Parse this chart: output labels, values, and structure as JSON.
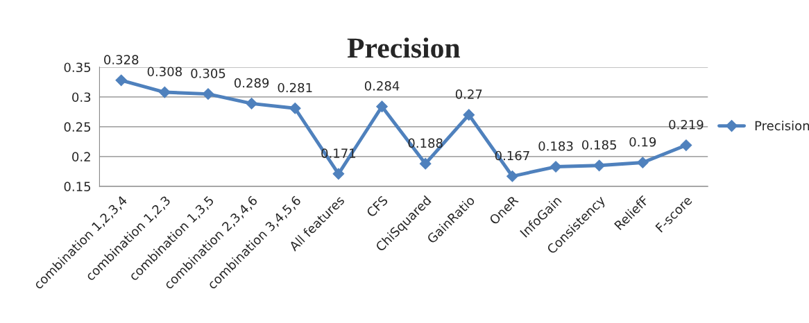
{
  "chart_data": {
    "type": "line",
    "title": "Precision",
    "categories": [
      "combination 1,2,3,4",
      "combination 1,2,3",
      "combination 1,3,5",
      "combination 2,3,4,6",
      "combination 3,4,5,6",
      "All features",
      "CFS",
      "ChiSquared",
      "GainRatio",
      "OneR",
      "InfoGain",
      "Consistency",
      "ReliefF",
      "F-score"
    ],
    "series": [
      {
        "name": "Precision",
        "color": "#4f81bd",
        "values": [
          0.328,
          0.308,
          0.305,
          0.289,
          0.281,
          0.171,
          0.284,
          0.188,
          0.27,
          0.167,
          0.183,
          0.185,
          0.19,
          0.219
        ]
      }
    ],
    "ylim": [
      0.15,
      0.35
    ],
    "yticks": [
      0.15,
      0.2,
      0.25,
      0.3,
      0.35
    ],
    "grid": "y",
    "legend": "right",
    "marker": "diamond",
    "line_style": "solid",
    "data_labels": true
  }
}
